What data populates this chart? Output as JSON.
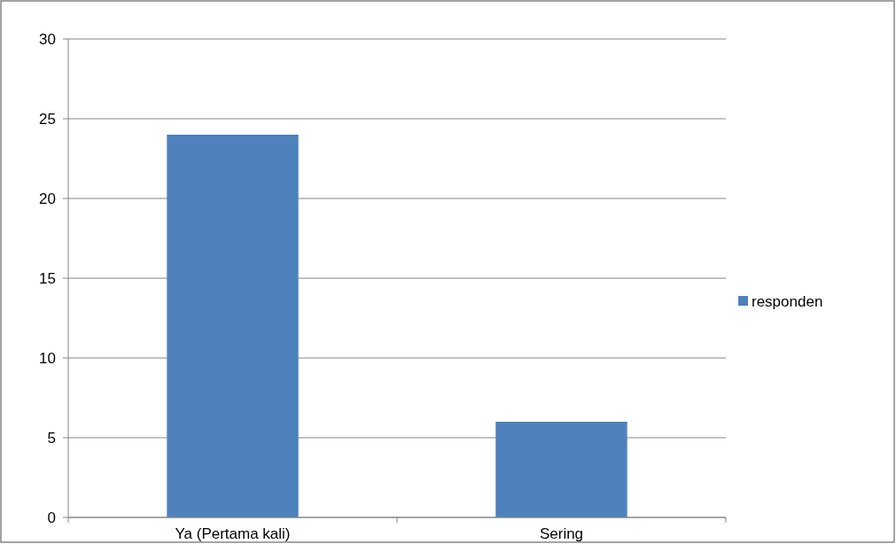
{
  "chart_data": {
    "type": "bar",
    "categories": [
      "Ya (Pertama kali)",
      "Sering"
    ],
    "series": [
      {
        "name": "responden",
        "color": "#4f81bd",
        "values": [
          24,
          6
        ]
      }
    ],
    "ylim": [
      0,
      30
    ],
    "yticks": [
      0,
      5,
      10,
      15,
      20,
      25,
      30
    ],
    "grid": "y",
    "legend": "right"
  }
}
